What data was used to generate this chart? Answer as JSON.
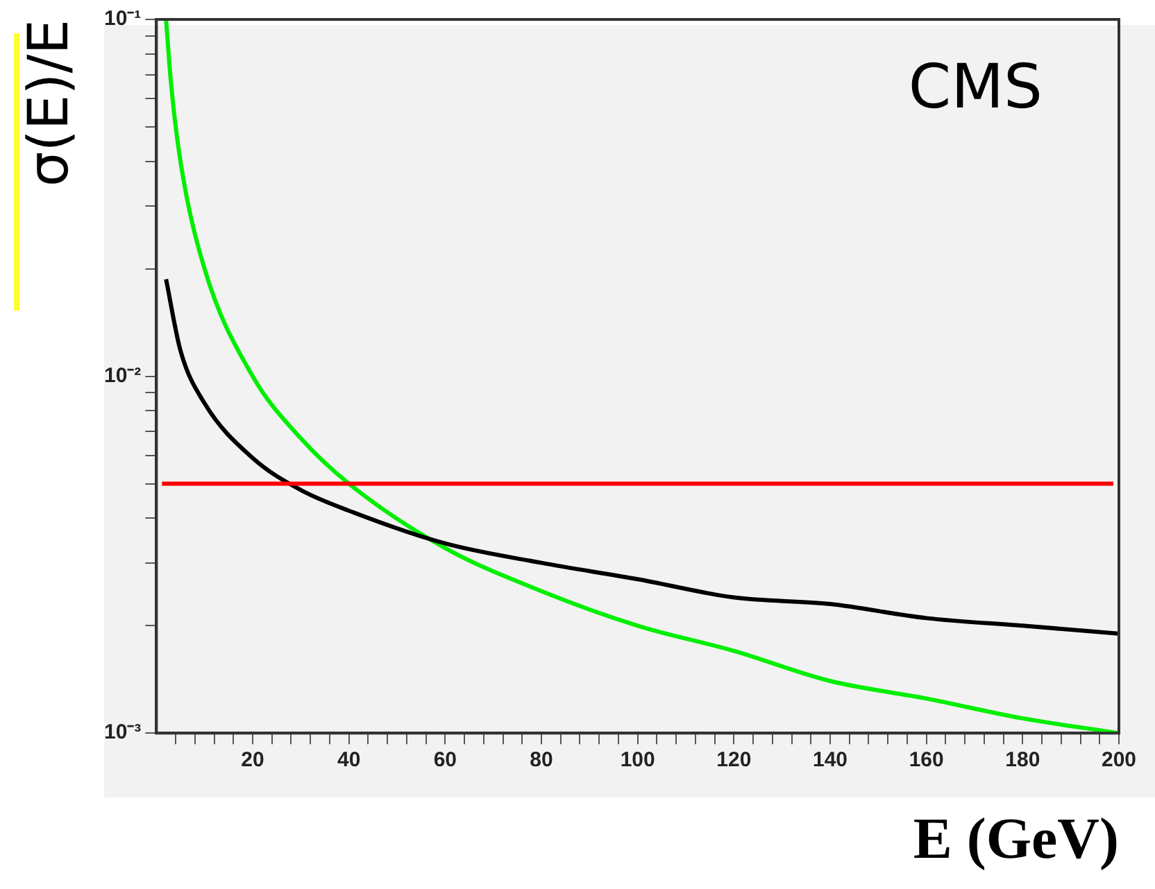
{
  "chart_data": {
    "type": "line",
    "xlabel": "E (GeV)",
    "ylabel": "σ(E)/E",
    "annotations": [
      "CMS"
    ],
    "log": "y",
    "grid": false,
    "legend": false,
    "marker": "none",
    "line_style": "solid",
    "xlim": [
      0,
      200
    ],
    "ylim": [
      0.001,
      0.1
    ],
    "xticks": [
      {
        "value": 4,
        "label": null
      },
      {
        "value": 8,
        "label": null
      },
      {
        "value": 12,
        "label": null
      },
      {
        "value": 16,
        "label": null
      },
      20,
      {
        "value": 24,
        "label": null
      },
      {
        "value": 28,
        "label": null
      },
      {
        "value": 32,
        "label": null
      },
      {
        "value": 36,
        "label": null
      },
      40,
      {
        "value": 44,
        "label": null
      },
      {
        "value": 48,
        "label": null
      },
      {
        "value": 52,
        "label": null
      },
      {
        "value": 56,
        "label": null
      },
      60,
      {
        "value": 64,
        "label": null
      },
      {
        "value": 68,
        "label": null
      },
      {
        "value": 72,
        "label": null
      },
      {
        "value": 76,
        "label": null
      },
      80,
      {
        "value": 84,
        "label": null
      },
      {
        "value": 88,
        "label": null
      },
      {
        "value": 92,
        "label": null
      },
      {
        "value": 96,
        "label": null
      },
      100,
      {
        "value": 104,
        "label": null
      },
      {
        "value": 108,
        "label": null
      },
      {
        "value": 112,
        "label": null
      },
      {
        "value": 116,
        "label": null
      },
      120,
      {
        "value": 124,
        "label": null
      },
      {
        "value": 128,
        "label": null
      },
      {
        "value": 132,
        "label": null
      },
      {
        "value": 136,
        "label": null
      },
      140,
      {
        "value": 144,
        "label": null
      },
      {
        "value": 148,
        "label": null
      },
      {
        "value": 152,
        "label": null
      },
      {
        "value": 156,
        "label": null
      },
      160,
      {
        "value": 164,
        "label": null
      },
      {
        "value": 168,
        "label": null
      },
      {
        "value": 172,
        "label": null
      },
      {
        "value": 176,
        "label": null
      },
      180,
      {
        "value": 184,
        "label": null
      },
      {
        "value": 188,
        "label": null
      },
      {
        "value": 192,
        "label": null
      },
      {
        "value": 196,
        "label": null
      },
      200
    ],
    "yticks": [
      {
        "value": 0.001,
        "label": "10⁻³"
      },
      {
        "value": 0.002,
        "label": null
      },
      {
        "value": 0.003,
        "label": null
      },
      {
        "value": 0.004,
        "label": null
      },
      {
        "value": 0.005,
        "label": null
      },
      {
        "value": 0.006,
        "label": null
      },
      {
        "value": 0.007,
        "label": null
      },
      {
        "value": 0.008,
        "label": null
      },
      {
        "value": 0.009,
        "label": null
      },
      {
        "value": 0.01,
        "label": "10⁻²"
      },
      {
        "value": 0.02,
        "label": null
      },
      {
        "value": 0.03,
        "label": null
      },
      {
        "value": 0.04,
        "label": null
      },
      {
        "value": 0.05,
        "label": null
      },
      {
        "value": 0.06,
        "label": null
      },
      {
        "value": 0.07,
        "label": null
      },
      {
        "value": 0.08,
        "label": null
      },
      {
        "value": 0.09,
        "label": null
      },
      {
        "value": 0.1,
        "label": "10⁻¹"
      }
    ],
    "ref_lines": [
      {
        "axis": "y",
        "value": 0.005,
        "color": "#ff0000"
      }
    ],
    "series": [
      {
        "color": "#000000",
        "x": [
          2,
          5,
          10,
          20,
          30,
          40,
          60,
          80,
          100,
          120,
          140,
          160,
          180,
          200
        ],
        "values": [
          0.0187,
          0.0118,
          0.0084,
          0.0059,
          0.0048,
          0.0042,
          0.0034,
          0.003,
          0.0027,
          0.0024,
          0.0023,
          0.0021,
          0.002,
          0.0019
        ]
      },
      {
        "color": "#00ee00",
        "x": [
          2,
          3,
          5,
          10,
          20,
          30,
          40,
          60,
          80,
          100,
          120,
          140,
          160,
          180,
          200
        ],
        "values": [
          0.1,
          0.067,
          0.04,
          0.02,
          0.01,
          0.0067,
          0.005,
          0.0033,
          0.0025,
          0.002,
          0.0017,
          0.0014,
          0.00125,
          0.0011,
          0.001
        ]
      }
    ]
  }
}
